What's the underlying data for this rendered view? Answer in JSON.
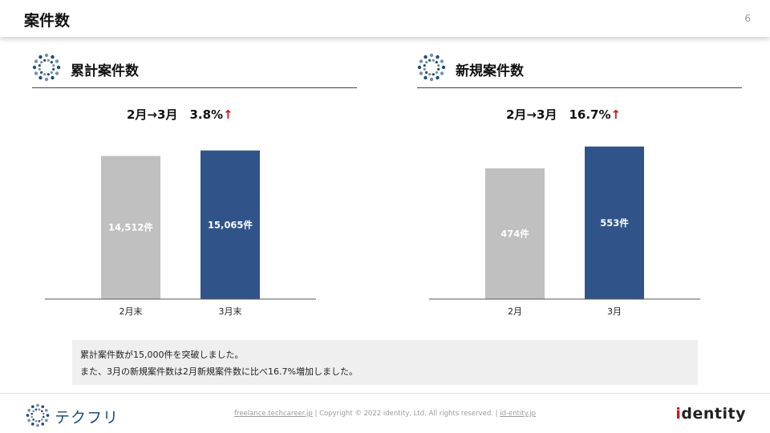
{
  "header": {
    "title": "案件数",
    "page_number": "6"
  },
  "colors": {
    "bar_previous": "#c0c0c0",
    "bar_current": "#30548a",
    "arrow": "#d0121b",
    "brand_blue": "#1d4f7c"
  },
  "sections": [
    {
      "title": "累計案件数",
      "growth_label": "2月→3月　3.8%",
      "growth_arrow": "↑",
      "chart_data": {
        "type": "bar",
        "categories": [
          "2月末",
          "3月末"
        ],
        "values": [
          14512,
          15065
        ],
        "data_labels": [
          "14,512件",
          "15,065件"
        ],
        "ylim": [
          0,
          16500
        ]
      }
    },
    {
      "title": "新規案件数",
      "growth_label": "2月→3月　16.7%",
      "growth_arrow": "↑",
      "chart_data": {
        "type": "bar",
        "categories": [
          "2月",
          "3月"
        ],
        "values": [
          474,
          553
        ],
        "data_labels": [
          "474件",
          "553件"
        ],
        "ylim": [
          0,
          590
        ]
      }
    }
  ],
  "note": {
    "lines": [
      "累計案件数が15,000件を突破しました。",
      "また、3月の新規案件数は2月新規案件数に比べ16.7%増加しました。"
    ]
  },
  "footer": {
    "brand_text": "テクフリ",
    "link_site": "freelance.techcareer.jp",
    "sep1": "|",
    "copyright": "Copyright © 2022 identity, Ltd. All rights reserved.",
    "sep2": "|",
    "link_corp": "id-entity.jp",
    "logo_i": "i",
    "logo_rest": "dentity"
  }
}
